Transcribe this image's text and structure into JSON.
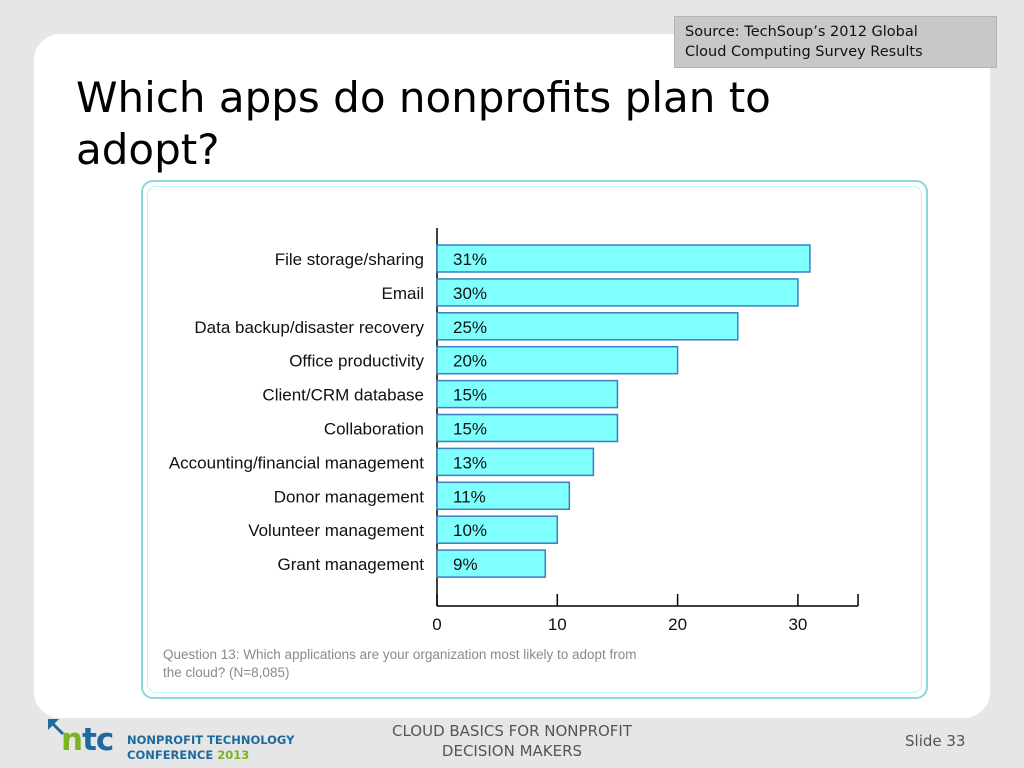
{
  "slide": {
    "title": "Which apps do nonprofits plan to adopt?",
    "source_line1": "Source: TechSoup’s 2012 Global",
    "source_line2": "Cloud Computing Survey Results",
    "caption_line1": "Question 13: Which applications are your organization most likely to adopt from",
    "caption_line2": "the cloud? (N=8,085)",
    "footer_line1": "CLOUD BASICS FOR NONPROFIT",
    "footer_line2": "DECISION MAKERS",
    "slide_number": "Slide 33"
  },
  "logo": {
    "mark": "ntc",
    "mark_n": "n",
    "mark_tc": "tc",
    "line1": "NONPROFIT TECHNOLOGY",
    "line2_prefix": "CONFERENCE",
    "line2_year": "2013"
  },
  "colors": {
    "bar_fill": "#80ffff",
    "bar_stroke": "#3a7ec4",
    "axis": "#000000",
    "frame_border": "#8fd5dd",
    "logo_green": "#7ab51d",
    "logo_blue": "#1e6a9c"
  },
  "chart_data": {
    "type": "bar",
    "orientation": "horizontal",
    "categories": [
      "File storage/sharing",
      "Email",
      "Data backup/disaster recovery",
      "Office productivity",
      "Client/CRM database",
      "Collaboration",
      "Accounting/financial management",
      "Donor management",
      "Volunteer management",
      "Grant management"
    ],
    "values": [
      31,
      30,
      25,
      20,
      15,
      15,
      13,
      11,
      10,
      9
    ],
    "data_labels": [
      "31%",
      "30%",
      "25%",
      "20%",
      "15%",
      "15%",
      "13%",
      "11%",
      "10%",
      "9%"
    ],
    "xticks": [
      0,
      10,
      20,
      30
    ],
    "xlim": [
      0,
      35
    ],
    "grid": false,
    "legend": false
  }
}
